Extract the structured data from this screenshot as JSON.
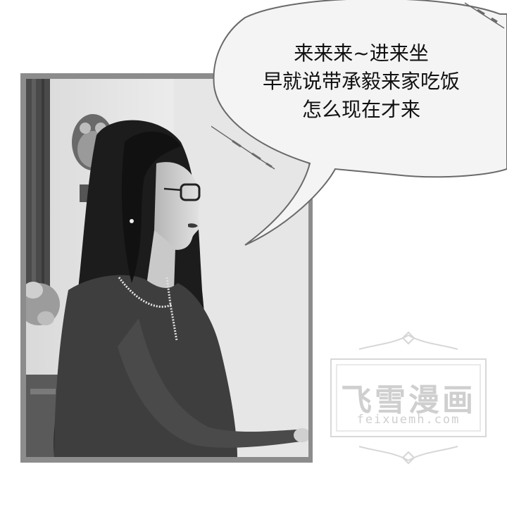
{
  "speech_bubble": {
    "lines": [
      "来来来~进来坐",
      "早就说带承毅来家吃饭",
      "怎么现在才来"
    ]
  },
  "watermark": {
    "title": "飞雪漫画",
    "subtitle": "feixuemh.com"
  },
  "colors": {
    "panel_border": "#8c8c8c",
    "bubble_fill": "#f4f4f4",
    "bubble_stroke": "#6a6a6a",
    "watermark": "#cfcfcf"
  }
}
